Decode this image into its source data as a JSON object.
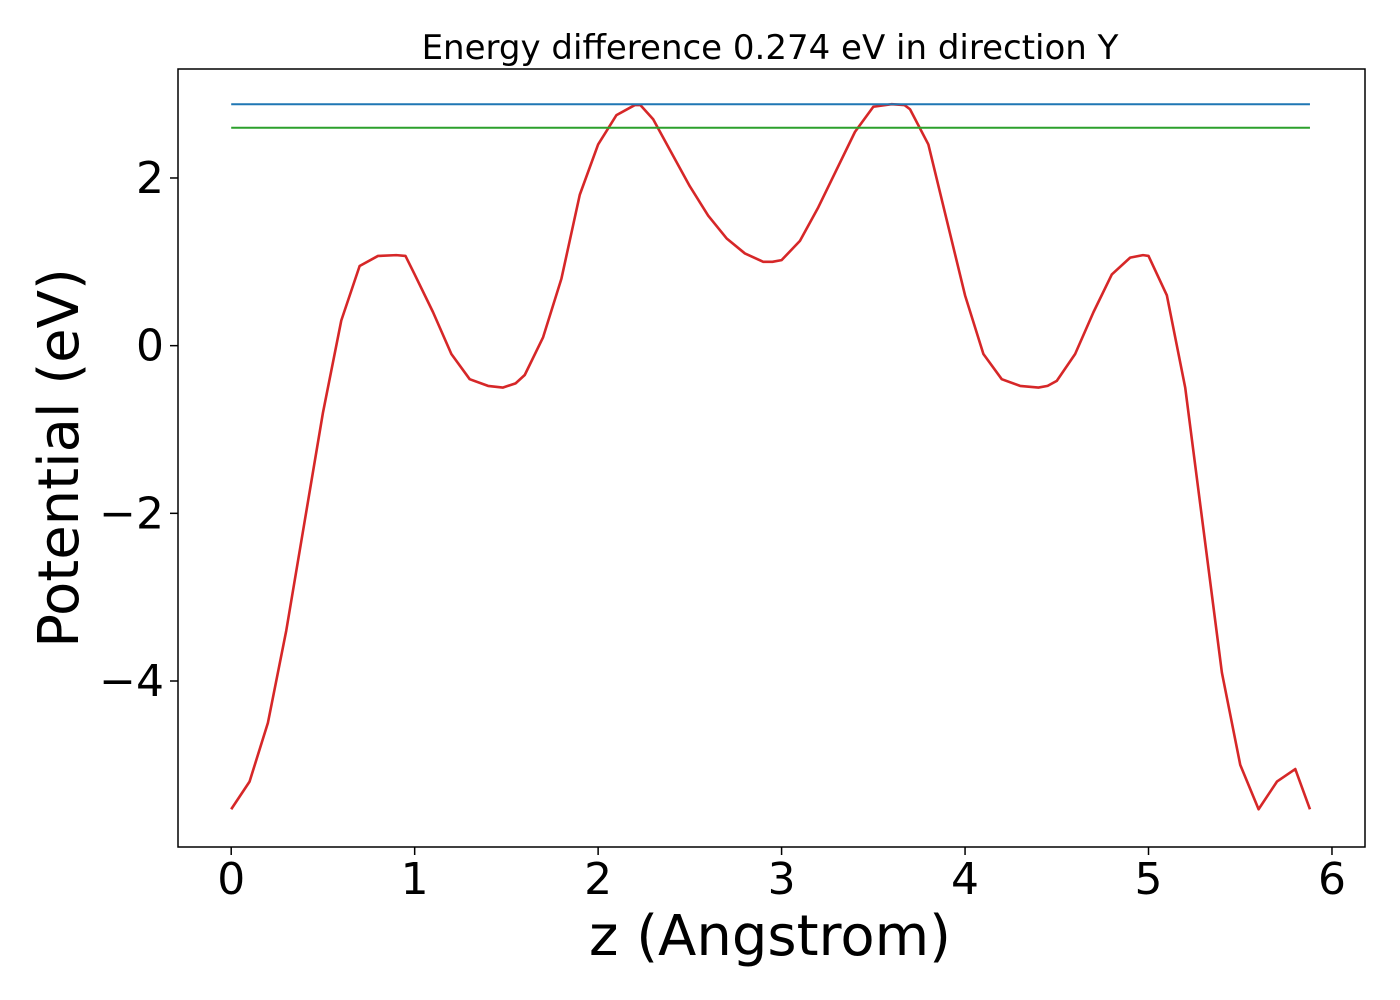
{
  "chart_data": {
    "type": "line",
    "title": "Energy difference 0.274 eV in direction Y",
    "xlabel": "z (Angstrom)",
    "ylabel": "Potential (eV)",
    "xlim": [
      -0.29,
      6.18
    ],
    "ylim": [
      -5.98,
      3.3
    ],
    "xticks": [
      0,
      1,
      2,
      3,
      4,
      5,
      6
    ],
    "xtick_labels": [
      "0",
      "1",
      "2",
      "3",
      "4",
      "5",
      "6"
    ],
    "yticks": [
      -4,
      -2,
      0,
      2
    ],
    "ytick_labels": [
      "−4",
      "−2",
      "0",
      "2"
    ],
    "grid": false,
    "series": [
      {
        "color": "#d62728",
        "x": [
          0.0,
          0.1,
          0.2,
          0.3,
          0.4,
          0.5,
          0.6,
          0.7,
          0.8,
          0.9,
          0.95,
          1.0,
          1.1,
          1.2,
          1.3,
          1.4,
          1.48,
          1.55,
          1.6,
          1.7,
          1.8,
          1.9,
          2.0,
          2.1,
          2.2,
          2.23,
          2.3,
          2.4,
          2.5,
          2.6,
          2.7,
          2.8,
          2.9,
          2.95,
          3.0,
          3.1,
          3.2,
          3.3,
          3.4,
          3.5,
          3.6,
          3.67,
          3.7,
          3.8,
          3.9,
          4.0,
          4.1,
          4.2,
          4.3,
          4.4,
          4.45,
          4.5,
          4.6,
          4.7,
          4.8,
          4.9,
          4.97,
          5.0,
          5.1,
          5.2,
          5.3,
          5.4,
          5.5,
          5.6,
          5.7,
          5.8,
          5.88
        ],
        "y": [
          -5.53,
          -5.2,
          -4.5,
          -3.4,
          -2.1,
          -0.8,
          0.3,
          0.95,
          1.07,
          1.08,
          1.07,
          0.85,
          0.4,
          -0.1,
          -0.4,
          -0.48,
          -0.5,
          -0.45,
          -0.35,
          0.1,
          0.8,
          1.8,
          2.4,
          2.75,
          2.87,
          2.87,
          2.7,
          2.3,
          1.9,
          1.55,
          1.28,
          1.1,
          1.0,
          1.0,
          1.02,
          1.25,
          1.65,
          2.1,
          2.55,
          2.85,
          2.88,
          2.87,
          2.82,
          2.4,
          1.5,
          0.6,
          -0.1,
          -0.4,
          -0.48,
          -0.5,
          -0.48,
          -0.42,
          -0.1,
          0.4,
          0.85,
          1.05,
          1.08,
          1.07,
          0.6,
          -0.5,
          -2.2,
          -3.9,
          -5.0,
          -5.53,
          -5.2,
          -5.05,
          -5.53
        ]
      },
      {
        "color": "#1f77b4",
        "x": [
          0.0,
          5.88
        ],
        "y": [
          2.88,
          2.88
        ]
      },
      {
        "color": "#2ca02c",
        "x": [
          0.0,
          5.88
        ],
        "y": [
          2.6,
          2.6
        ]
      }
    ]
  }
}
